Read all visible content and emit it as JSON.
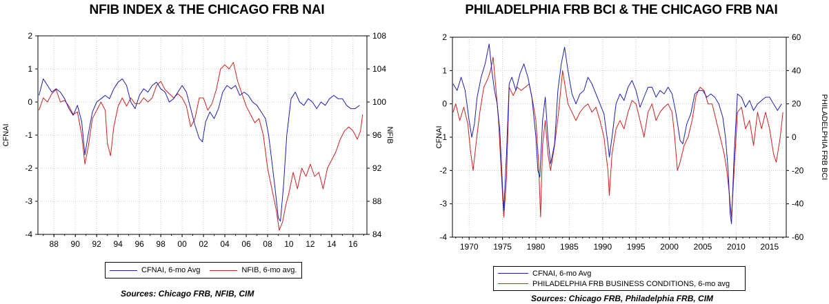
{
  "chart_data": [
    {
      "type": "line",
      "title": "NFIB INDEX & THE CHICAGO FRB NAI",
      "ylabel": "CFNAI",
      "y2label": "NFIB",
      "xlim": [
        1986.5,
        2017.3
      ],
      "ylim": [
        -4,
        2
      ],
      "y2lim": [
        84,
        108
      ],
      "x_ticks": [
        "88",
        "90",
        "92",
        "94",
        "96",
        "98",
        "00",
        "02",
        "04",
        "06",
        "08",
        "10",
        "12",
        "14",
        "16"
      ],
      "x_tick_values": [
        1988,
        1990,
        1992,
        1994,
        1996,
        1998,
        2000,
        2002,
        2004,
        2006,
        2008,
        2010,
        2012,
        2014,
        2016
      ],
      "y_ticks": [
        "2",
        "1",
        "0",
        "-1",
        "-2",
        "-3",
        "-4"
      ],
      "y2_ticks": [
        "108",
        "104",
        "100",
        "96",
        "92",
        "88",
        "84"
      ],
      "grid": true,
      "legend_position": "bottom",
      "series": [
        {
          "name": "CFNAI, 6-mo Avg",
          "axis": "left",
          "color": "#1c1cb4",
          "x": [
            1986.6,
            1987.0,
            1987.4,
            1987.8,
            1988.2,
            1988.6,
            1989.0,
            1989.4,
            1989.8,
            1990.2,
            1990.6,
            1990.9,
            1991.2,
            1991.6,
            1992.0,
            1992.4,
            1992.8,
            1993.2,
            1993.6,
            1994.0,
            1994.4,
            1994.8,
            1995.2,
            1995.6,
            1996.0,
            1996.4,
            1996.8,
            1997.2,
            1997.6,
            1998.0,
            1998.4,
            1998.8,
            1999.2,
            1999.6,
            2000.0,
            2000.4,
            2000.8,
            2001.2,
            2001.6,
            2001.9,
            2002.2,
            2002.6,
            2003.0,
            2003.4,
            2003.8,
            2004.2,
            2004.6,
            2005.0,
            2005.4,
            2005.8,
            2006.2,
            2006.6,
            2007.0,
            2007.4,
            2007.8,
            2008.1,
            2008.4,
            2008.7,
            2009.0,
            2009.2,
            2009.5,
            2009.8,
            2010.2,
            2010.6,
            2011.0,
            2011.4,
            2011.8,
            2012.2,
            2012.6,
            2013.0,
            2013.4,
            2013.8,
            2014.2,
            2014.6,
            2015.0,
            2015.4,
            2015.8,
            2016.2,
            2016.6
          ],
          "y": [
            0.2,
            0.7,
            0.5,
            0.3,
            0.4,
            0.3,
            0.1,
            -0.2,
            -0.4,
            -0.1,
            -0.6,
            -1.6,
            -1.0,
            -0.3,
            0.0,
            0.1,
            0.2,
            0.1,
            0.4,
            0.6,
            0.7,
            0.5,
            0.0,
            -0.2,
            0.2,
            0.4,
            0.3,
            0.5,
            0.6,
            0.4,
            0.3,
            0.0,
            0.1,
            0.3,
            0.5,
            0.3,
            -0.2,
            -0.7,
            -1.1,
            -1.2,
            -0.6,
            -0.3,
            -0.5,
            -0.2,
            0.3,
            0.5,
            0.4,
            0.5,
            0.2,
            0.3,
            0.2,
            0.0,
            -0.1,
            -0.3,
            -0.5,
            -1.0,
            -1.8,
            -2.6,
            -3.5,
            -3.6,
            -2.5,
            -1.0,
            0.1,
            0.3,
            0.0,
            -0.1,
            0.1,
            0.0,
            -0.2,
            0.0,
            -0.1,
            0.1,
            0.2,
            0.1,
            0.1,
            -0.1,
            -0.2,
            -0.2,
            -0.1
          ]
        },
        {
          "name": "NFIB, 6-mo avg.",
          "axis": "right",
          "color": "#cc2020",
          "x": [
            1986.6,
            1987.0,
            1987.4,
            1987.8,
            1988.2,
            1988.6,
            1989.0,
            1989.4,
            1989.8,
            1990.2,
            1990.6,
            1990.9,
            1991.2,
            1991.6,
            1992.0,
            1992.4,
            1992.8,
            1993.0,
            1993.3,
            1993.6,
            1994.0,
            1994.4,
            1994.8,
            1995.2,
            1995.6,
            1996.0,
            1996.4,
            1996.8,
            1997.2,
            1997.6,
            1998.0,
            1998.4,
            1998.8,
            1999.2,
            1999.6,
            2000.0,
            2000.4,
            2000.8,
            2001.2,
            2001.6,
            2002.0,
            2002.4,
            2002.8,
            2003.2,
            2003.6,
            2004.0,
            2004.4,
            2004.8,
            2005.2,
            2005.6,
            2006.0,
            2006.4,
            2006.8,
            2007.2,
            2007.6,
            2008.0,
            2008.4,
            2008.8,
            2009.1,
            2009.4,
            2009.7,
            2010.0,
            2010.4,
            2010.8,
            2011.2,
            2011.6,
            2012.0,
            2012.4,
            2012.8,
            2013.2,
            2013.6,
            2014.0,
            2014.4,
            2014.8,
            2015.2,
            2015.6,
            2016.0,
            2016.4,
            2016.7,
            2016.9
          ],
          "y": [
            99.0,
            100.5,
            100.0,
            101.0,
            101.5,
            100.0,
            100.2,
            99.5,
            98.5,
            98.8,
            96.0,
            92.5,
            94.5,
            98.0,
            99.0,
            100.0,
            99.0,
            95.0,
            93.5,
            97.0,
            99.5,
            100.5,
            99.5,
            100.5,
            99.8,
            99.8,
            100.5,
            100.0,
            100.5,
            102.0,
            102.5,
            101.5,
            101.0,
            100.5,
            101.0,
            100.5,
            99.5,
            97.0,
            98.0,
            100.5,
            100.5,
            99.0,
            99.8,
            101.5,
            104.0,
            104.5,
            104.0,
            104.8,
            102.5,
            101.0,
            99.5,
            98.5,
            97.5,
            98.0,
            96.0,
            92.0,
            89.5,
            87.0,
            84.5,
            85.5,
            87.5,
            89.0,
            91.5,
            89.5,
            92.0,
            91.0,
            92.5,
            91.0,
            91.5,
            89.5,
            92.0,
            93.0,
            94.0,
            95.5,
            96.5,
            97.0,
            96.5,
            95.5,
            96.5,
            98.5
          ]
        }
      ]
    },
    {
      "type": "line",
      "title": "PHILADELPHIA FRB BCI & THE CHICAGO FRB NAI",
      "ylabel": "CFNAI",
      "y2label": "PHILADELPHIA FRB BCI",
      "xlim": [
        1967.5,
        2017.5
      ],
      "ylim": [
        -4,
        2
      ],
      "y2lim": [
        -60,
        60
      ],
      "x_ticks": [
        "1970",
        "1975",
        "1980",
        "1985",
        "1990",
        "1995",
        "2000",
        "2005",
        "2010",
        "2015"
      ],
      "x_tick_values": [
        1970,
        1975,
        1980,
        1985,
        1990,
        1995,
        2000,
        2005,
        2010,
        2015
      ],
      "y_ticks": [
        "2",
        "1",
        "0",
        "-1",
        "-2",
        "-3",
        "-4"
      ],
      "y2_ticks": [
        "60",
        "40",
        "20",
        "0",
        "-20",
        "-40",
        "-60"
      ],
      "grid": true,
      "legend_position": "bottom",
      "series": [
        {
          "name": "CFNAI, 6-mo Avg",
          "axis": "left",
          "color": "#1c1cb4",
          "x": [
            1967.6,
            1968.2,
            1968.8,
            1969.4,
            1970.0,
            1970.4,
            1970.8,
            1971.2,
            1971.8,
            1972.4,
            1973.0,
            1973.4,
            1973.8,
            1974.2,
            1974.6,
            1975.0,
            1975.2,
            1975.6,
            1976.0,
            1976.4,
            1977.0,
            1977.6,
            1978.2,
            1978.8,
            1979.4,
            1980.0,
            1980.3,
            1980.6,
            1981.0,
            1981.4,
            1981.8,
            1982.2,
            1982.8,
            1983.3,
            1983.8,
            1984.3,
            1984.8,
            1985.4,
            1986.0,
            1986.6,
            1987.2,
            1987.8,
            1988.4,
            1989.0,
            1989.6,
            1990.2,
            1990.8,
            1991.0,
            1991.4,
            1992.0,
            1992.6,
            1993.2,
            1993.8,
            1994.4,
            1995.0,
            1995.6,
            1996.2,
            1996.8,
            1997.4,
            1998.0,
            1998.6,
            1999.2,
            1999.8,
            2000.4,
            2001.0,
            2001.6,
            2002.0,
            2002.6,
            2003.2,
            2003.8,
            2004.4,
            2005.0,
            2005.6,
            2006.2,
            2006.8,
            2007.4,
            2008.0,
            2008.4,
            2008.8,
            2009.1,
            2009.3,
            2009.7,
            2010.2,
            2010.8,
            2011.4,
            2012.0,
            2012.6,
            2013.2,
            2013.8,
            2014.4,
            2015.0,
            2015.6,
            2016.2,
            2016.8
          ],
          "y": [
            0.6,
            0.4,
            0.8,
            0.4,
            -0.5,
            -1.0,
            -0.6,
            0.2,
            0.8,
            1.2,
            1.8,
            1.0,
            0.4,
            0.0,
            -0.8,
            -2.5,
            -3.2,
            -1.5,
            0.6,
            0.8,
            0.4,
            0.9,
            1.2,
            0.8,
            0.2,
            -1.0,
            -2.0,
            -2.2,
            -0.5,
            0.2,
            -1.0,
            -1.8,
            -1.2,
            0.4,
            1.2,
            1.7,
            1.0,
            0.3,
            0.0,
            0.3,
            0.4,
            0.8,
            0.6,
            0.3,
            0.0,
            -0.3,
            -1.2,
            -1.6,
            -1.0,
            0.0,
            0.3,
            0.1,
            0.5,
            0.7,
            0.4,
            -0.1,
            0.2,
            0.5,
            0.5,
            0.2,
            0.4,
            0.3,
            0.5,
            0.3,
            -0.3,
            -1.1,
            -1.2,
            -0.6,
            -0.3,
            0.3,
            0.4,
            0.4,
            0.2,
            0.3,
            0.2,
            0.0,
            -0.4,
            -1.0,
            -2.0,
            -3.3,
            -3.6,
            -1.5,
            0.3,
            0.2,
            -0.1,
            0.1,
            -0.2,
            0.0,
            0.1,
            0.2,
            0.2,
            0.0,
            -0.2,
            0.0
          ]
        },
        {
          "name": "PHILADELPHIA FRB BUSINESS CONDITIONS, 6-mo avg",
          "axis": "right",
          "color": "#cc2020",
          "x": [
            1967.6,
            1968.0,
            1968.6,
            1969.2,
            1969.8,
            1970.2,
            1970.6,
            1971.0,
            1971.6,
            1972.2,
            1972.8,
            1973.2,
            1973.6,
            1974.0,
            1974.4,
            1974.8,
            1975.2,
            1975.6,
            1976.0,
            1976.6,
            1977.2,
            1977.8,
            1978.4,
            1979.0,
            1979.6,
            1980.0,
            1980.4,
            1980.7,
            1981.0,
            1981.4,
            1981.8,
            1982.2,
            1982.8,
            1983.4,
            1984.0,
            1984.4,
            1984.8,
            1985.4,
            1986.0,
            1986.6,
            1987.2,
            1987.8,
            1988.4,
            1989.0,
            1989.6,
            1990.2,
            1990.8,
            1991.0,
            1991.4,
            1992.0,
            1992.6,
            1993.2,
            1993.8,
            1994.4,
            1995.0,
            1995.6,
            1996.2,
            1996.8,
            1997.4,
            1998.0,
            1998.6,
            1999.2,
            1999.8,
            2000.4,
            2000.8,
            2001.2,
            2001.6,
            2002.2,
            2002.8,
            2003.4,
            2004.0,
            2004.6,
            2005.2,
            2005.8,
            2006.4,
            2007.0,
            2007.6,
            2008.2,
            2008.6,
            2009.0,
            2009.3,
            2009.7,
            2010.2,
            2010.8,
            2011.4,
            2012.0,
            2012.6,
            2013.2,
            2013.8,
            2014.4,
            2015.0,
            2015.6,
            2016.0,
            2016.6,
            2017.0
          ],
          "y": [
            15,
            20,
            10,
            18,
            8,
            -8,
            -20,
            -5,
            15,
            30,
            35,
            40,
            48,
            30,
            10,
            -20,
            -48,
            -25,
            30,
            25,
            30,
            28,
            30,
            32,
            20,
            10,
            -15,
            -48,
            -5,
            10,
            -10,
            -20,
            -5,
            15,
            40,
            30,
            20,
            15,
            10,
            15,
            18,
            20,
            15,
            18,
            10,
            0,
            -20,
            -35,
            -10,
            5,
            10,
            5,
            15,
            22,
            20,
            10,
            0,
            15,
            20,
            10,
            15,
            18,
            20,
            15,
            0,
            -20,
            -15,
            -5,
            0,
            10,
            25,
            30,
            28,
            20,
            20,
            10,
            0,
            -10,
            -20,
            -35,
            -48,
            -20,
            15,
            18,
            5,
            10,
            -5,
            15,
            5,
            15,
            5,
            -10,
            -15,
            0,
            15
          ]
        }
      ]
    }
  ],
  "legends": {
    "left": {
      "series1": "CFNAI, 6-mo Avg",
      "series2": "NFIB, 6-mo avg."
    },
    "right": {
      "series1": "CFNAI, 6-mo Avg",
      "series2": "PHILADELPHIA FRB BUSINESS CONDITIONS, 6-mo avg"
    }
  },
  "sources": {
    "left": "Sources:  Chicago FRB, NFIB, CIM",
    "right": "Sources:  Chicago FRB, Philadelphia FRB, CIM"
  },
  "colors": {
    "cfnai": "#1c1cb4",
    "other": "#cc2020",
    "grid": "#c8c8c8",
    "plot_bg": "#ffffff"
  }
}
